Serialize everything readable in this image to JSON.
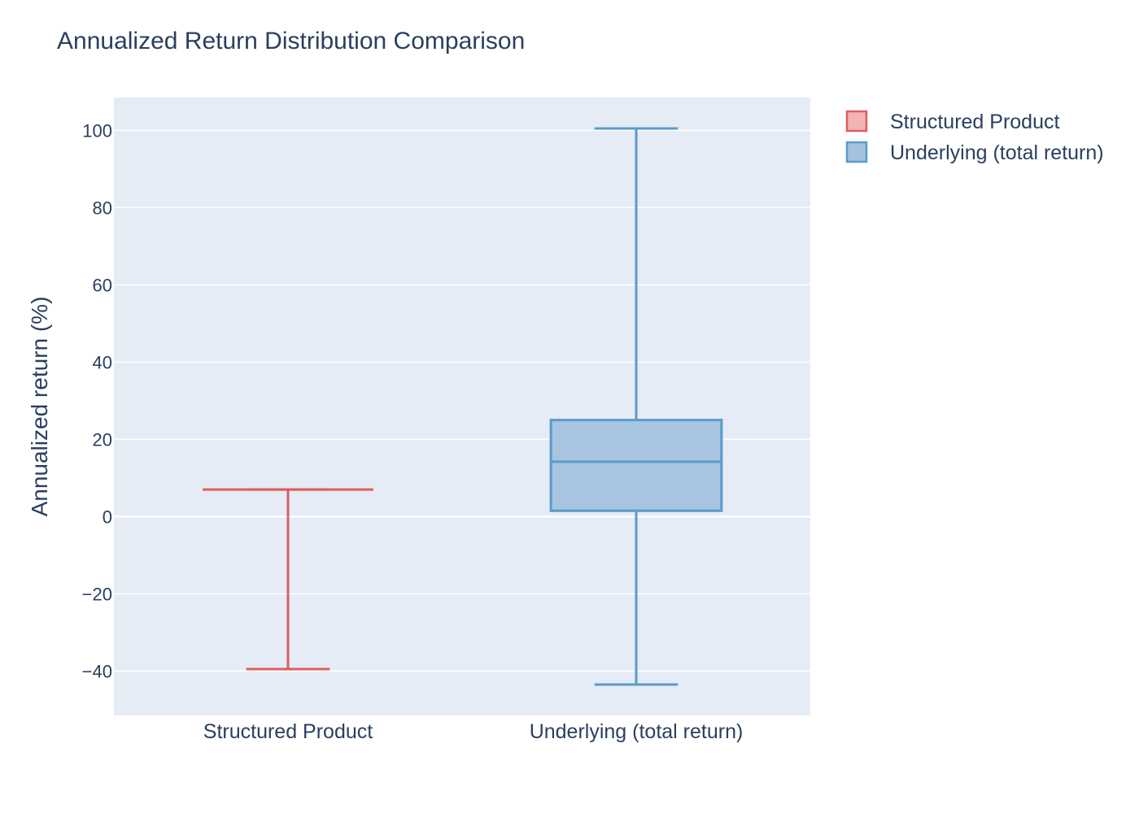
{
  "chart_data": {
    "type": "box",
    "title": "Annualized Return Distribution Comparison",
    "ylabel": "Annualized return (%)",
    "xlabel": "",
    "ylim": [
      -51.5,
      108.5
    ],
    "yticks": [
      -40,
      -20,
      0,
      20,
      40,
      60,
      80,
      100
    ],
    "ytick_labels": [
      "−40",
      "−20",
      "0",
      "20",
      "40",
      "60",
      "80",
      "100"
    ],
    "grid": true,
    "legend_position": "top-right",
    "categories": [
      "Structured Product",
      "Underlying (total return)"
    ],
    "series": [
      {
        "name": "Structured Product",
        "color": "#e05c5c",
        "fill": "#f2b3b3",
        "min": -39.5,
        "q1": 7.0,
        "median": 7.0,
        "q3": 7.0,
        "max": 7.0
      },
      {
        "name": "Underlying (total return)",
        "color": "#5a9bc9",
        "fill": "#a3c2df",
        "min": -43.5,
        "q1": 1.5,
        "median": 14.2,
        "q3": 25.0,
        "max": 100.5
      }
    ]
  }
}
